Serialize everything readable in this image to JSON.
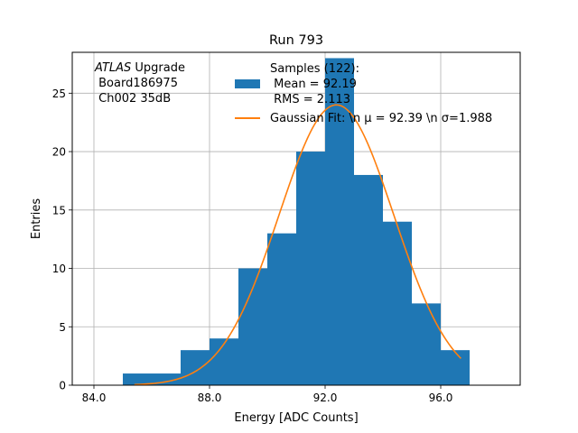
{
  "chart_data": {
    "type": "bar",
    "title": "Run 793",
    "xlabel": "Energy [ADC Counts]",
    "ylabel": "Entries",
    "xlim": [
      83.25,
      98.75
    ],
    "ylim": [
      0,
      28.5
    ],
    "xticks": [
      84,
      88,
      92,
      96
    ],
    "xtick_labels": [
      "84.0",
      "88.0",
      "92.0",
      "96.0"
    ],
    "yticks": [
      0,
      5,
      10,
      15,
      20,
      25
    ],
    "ytick_labels": [
      "0",
      "5",
      "10",
      "15",
      "20",
      "25"
    ],
    "grid": true,
    "bins": [
      {
        "x0": 85,
        "x1": 87,
        "count": 1
      },
      {
        "x0": 87,
        "x1": 88,
        "count": 3
      },
      {
        "x0": 88,
        "x1": 89,
        "count": 4
      },
      {
        "x0": 89,
        "x1": 90,
        "count": 10
      },
      {
        "x0": 90,
        "x1": 91,
        "count": 13
      },
      {
        "x0": 91,
        "x1": 92,
        "count": 20
      },
      {
        "x0": 92,
        "x1": 93,
        "count": 28
      },
      {
        "x0": 93,
        "x1": 94,
        "count": 18
      },
      {
        "x0": 94,
        "x1": 95,
        "count": 14
      },
      {
        "x0": 95,
        "x1": 96,
        "count": 7
      },
      {
        "x0": 96,
        "x1": 97,
        "count": 3
      }
    ],
    "histogram_color": "#1f77b4",
    "fit": {
      "type": "gaussian",
      "mu": 92.39,
      "sigma": 1.988,
      "amplitude": 24,
      "x_range": [
        85.4,
        96.7
      ],
      "color": "#ff7f0e"
    },
    "legend": {
      "placement": "top-right",
      "samples_line1": "Samples (122):",
      "samples_line2": " Mean = 92.19",
      "samples_line3": " RMS = 2.113",
      "fit_label": "Gaussian Fit: \\n μ = 92.39 \\n σ=1.988"
    },
    "annotation": {
      "line1_italic": "ATLAS",
      "line1_rest": " Upgrade",
      "line2": " Board186975",
      "line3": " Ch002 35dB"
    }
  }
}
